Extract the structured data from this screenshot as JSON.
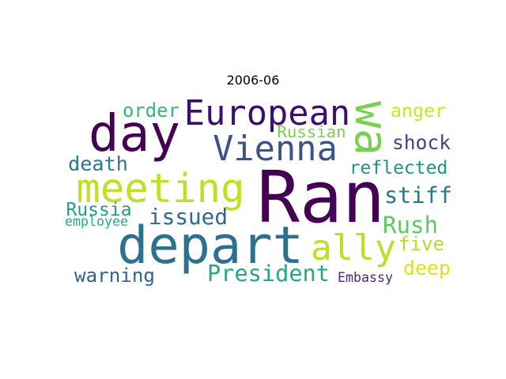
{
  "title": "2006-06",
  "words": [
    {
      "text": "Ran",
      "color": "#440154"
    },
    {
      "text": "depart",
      "color": "#2c728e"
    },
    {
      "text": "day",
      "color": "#440154"
    },
    {
      "text": "meeting",
      "color": "#c2df23"
    },
    {
      "text": "European",
      "color": "#3b0f70"
    },
    {
      "text": "Vienna",
      "color": "#3b528b"
    },
    {
      "text": "wa",
      "color": "#7ad151"
    },
    {
      "text": "ally",
      "color": "#bddf26"
    },
    {
      "text": "President",
      "color": "#22a884"
    },
    {
      "text": "anger",
      "color": "#d2e21b"
    },
    {
      "text": "shock",
      "color": "#414487"
    },
    {
      "text": "reflected",
      "color": "#21918c"
    },
    {
      "text": "stiff",
      "color": "#2a788e"
    },
    {
      "text": "Rush",
      "color": "#5ec962"
    },
    {
      "text": "five",
      "color": "#b5de2b"
    },
    {
      "text": "deep",
      "color": "#dde318"
    },
    {
      "text": "order",
      "color": "#35b779"
    },
    {
      "text": "death",
      "color": "#2a788e"
    },
    {
      "text": "Russian",
      "color": "#7ad151"
    },
    {
      "text": "issued",
      "color": "#31688e"
    },
    {
      "text": "Russia",
      "color": "#1fa187"
    },
    {
      "text": "employee",
      "color": "#25ab82"
    },
    {
      "text": "warning",
      "color": "#33638d"
    },
    {
      "text": "Embassy",
      "color": "#482878"
    }
  ]
}
